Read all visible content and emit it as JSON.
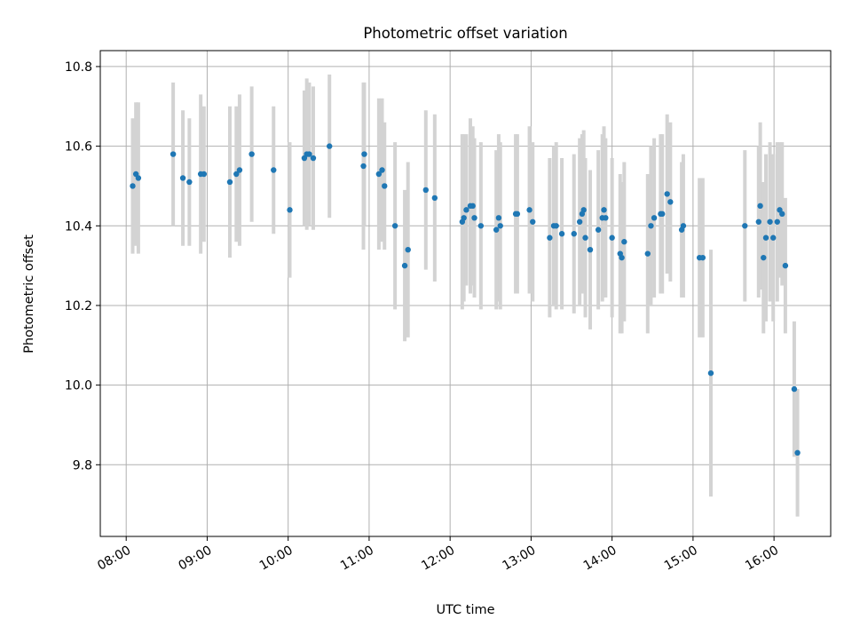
{
  "chart_data": {
    "type": "scatter",
    "title": "Photometric offset variation",
    "xlabel": "UTC time",
    "ylabel": "Photometric offset",
    "grid": true,
    "legend": "none",
    "xlim": [
      7.68,
      16.7
    ],
    "ylim": [
      9.62,
      10.84
    ],
    "x_unit": "hours UTC",
    "xticks": [
      {
        "value": 8,
        "label": "08:00"
      },
      {
        "value": 9,
        "label": "09:00"
      },
      {
        "value": 10,
        "label": "10:00"
      },
      {
        "value": 11,
        "label": "11:00"
      },
      {
        "value": 12,
        "label": "12:00"
      },
      {
        "value": 13,
        "label": "13:00"
      },
      {
        "value": 14,
        "label": "14:00"
      },
      {
        "value": 15,
        "label": "15:00"
      },
      {
        "value": 16,
        "label": "16:00"
      }
    ],
    "yticks": [
      {
        "value": 9.8,
        "label": "9.8"
      },
      {
        "value": 10.0,
        "label": "10.0"
      },
      {
        "value": 10.2,
        "label": "10.2"
      },
      {
        "value": 10.4,
        "label": "10.4"
      },
      {
        "value": 10.6,
        "label": "10.6"
      },
      {
        "value": 10.8,
        "label": "10.8"
      }
    ],
    "colors": {
      "point": "#1f77b4",
      "errorbar": "#d3d3d3",
      "grid": "#b0b0b0",
      "axis": "#000000"
    },
    "series": [
      {
        "name": "offset",
        "points": [
          [
            8.08,
            10.5,
            0.17
          ],
          [
            8.12,
            10.53,
            0.18
          ],
          [
            8.15,
            10.52,
            0.19
          ],
          [
            8.58,
            10.58,
            0.18
          ],
          [
            8.7,
            10.52,
            0.17
          ],
          [
            8.78,
            10.51,
            0.16
          ],
          [
            8.92,
            10.53,
            0.2
          ],
          [
            8.96,
            10.53,
            0.17
          ],
          [
            9.28,
            10.51,
            0.19
          ],
          [
            9.36,
            10.53,
            0.17
          ],
          [
            9.4,
            10.54,
            0.19
          ],
          [
            9.55,
            10.58,
            0.17
          ],
          [
            9.82,
            10.54,
            0.16
          ],
          [
            10.02,
            10.44,
            0.17
          ],
          [
            10.2,
            10.57,
            0.17
          ],
          [
            10.23,
            10.58,
            0.19
          ],
          [
            10.26,
            10.58,
            0.18
          ],
          [
            10.31,
            10.57,
            0.18
          ],
          [
            10.51,
            10.6,
            0.18
          ],
          [
            10.93,
            10.55,
            0.21
          ],
          [
            10.94,
            10.58,
            0.18
          ],
          [
            11.12,
            10.53,
            0.19
          ],
          [
            11.16,
            10.54,
            0.18
          ],
          [
            11.19,
            10.5,
            0.16
          ],
          [
            11.32,
            10.4,
            0.21
          ],
          [
            11.44,
            10.3,
            0.19
          ],
          [
            11.48,
            10.34,
            0.22
          ],
          [
            11.7,
            10.49,
            0.2
          ],
          [
            11.81,
            10.47,
            0.21
          ],
          [
            12.15,
            10.41,
            0.22
          ],
          [
            12.17,
            10.42,
            0.21
          ],
          [
            12.2,
            10.44,
            0.19
          ],
          [
            12.25,
            10.45,
            0.22
          ],
          [
            12.28,
            10.45,
            0.2
          ],
          [
            12.3,
            10.42,
            0.2
          ],
          [
            12.38,
            10.4,
            0.21
          ],
          [
            12.57,
            10.39,
            0.2
          ],
          [
            12.6,
            10.42,
            0.21
          ],
          [
            12.62,
            10.4,
            0.21
          ],
          [
            12.81,
            10.43,
            0.2
          ],
          [
            12.83,
            10.43,
            0.2
          ],
          [
            12.98,
            10.44,
            0.21
          ],
          [
            13.02,
            10.41,
            0.2
          ],
          [
            13.23,
            10.37,
            0.2
          ],
          [
            13.28,
            10.4,
            0.2
          ],
          [
            13.31,
            10.4,
            0.21
          ],
          [
            13.38,
            10.38,
            0.19
          ],
          [
            13.53,
            10.38,
            0.2
          ],
          [
            13.6,
            10.41,
            0.21
          ],
          [
            13.63,
            10.43,
            0.2
          ],
          [
            13.65,
            10.44,
            0.2
          ],
          [
            13.67,
            10.37,
            0.2
          ],
          [
            13.73,
            10.34,
            0.2
          ],
          [
            13.83,
            10.39,
            0.2
          ],
          [
            13.88,
            10.42,
            0.21
          ],
          [
            13.9,
            10.44,
            0.21
          ],
          [
            13.92,
            10.42,
            0.2
          ],
          [
            14.0,
            10.37,
            0.2
          ],
          [
            14.1,
            10.33,
            0.2
          ],
          [
            14.12,
            10.32,
            0.19
          ],
          [
            14.15,
            10.36,
            0.2
          ],
          [
            14.44,
            10.33,
            0.2
          ],
          [
            14.48,
            10.4,
            0.2
          ],
          [
            14.52,
            10.42,
            0.2
          ],
          [
            14.6,
            10.43,
            0.2
          ],
          [
            14.62,
            10.43,
            0.2
          ],
          [
            14.68,
            10.48,
            0.2
          ],
          [
            14.72,
            10.46,
            0.2
          ],
          [
            14.86,
            10.39,
            0.17
          ],
          [
            14.88,
            10.4,
            0.18
          ],
          [
            15.08,
            10.32,
            0.2
          ],
          [
            15.12,
            10.32,
            0.2
          ],
          [
            15.22,
            10.03,
            0.31
          ],
          [
            15.64,
            10.4,
            0.19
          ],
          [
            15.81,
            10.41,
            0.19
          ],
          [
            15.83,
            10.45,
            0.21
          ],
          [
            15.87,
            10.32,
            0.19
          ],
          [
            15.9,
            10.37,
            0.21
          ],
          [
            15.95,
            10.41,
            0.2
          ],
          [
            15.99,
            10.37,
            0.21
          ],
          [
            16.04,
            10.41,
            0.2
          ],
          [
            16.07,
            10.44,
            0.17
          ],
          [
            16.1,
            10.43,
            0.18
          ],
          [
            16.14,
            10.3,
            0.17
          ],
          [
            16.25,
            9.99,
            0.17
          ],
          [
            16.29,
            9.83,
            0.16
          ]
        ]
      }
    ]
  }
}
